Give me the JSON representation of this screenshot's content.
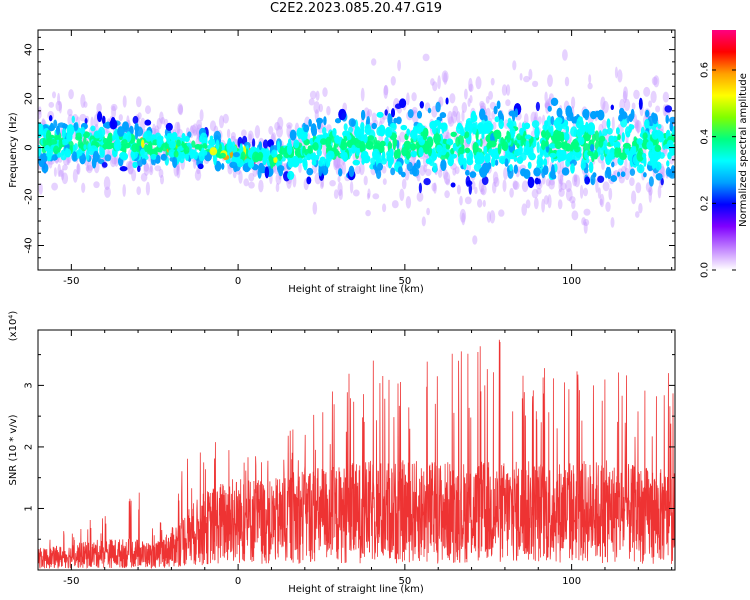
{
  "chart_data": [
    {
      "type": "heatmap",
      "title": "C2E2.2023.085.20.47.G19",
      "xlabel": "Height of straight line (km)",
      "ylabel": "Frequency (Hz)",
      "xlim": [
        -60,
        131
      ],
      "ylim": [
        -50,
        48
      ],
      "x_ticks": [
        -50,
        0,
        50,
        100
      ],
      "y_ticks": [
        -40,
        -20,
        0,
        20,
        40
      ],
      "colorbar": {
        "label": "Normalized spectral amplitude",
        "range": [
          0,
          0.72
        ],
        "ticks": [
          0.0,
          0.2,
          0.4,
          0.6
        ],
        "colors": [
          "#ffffff",
          "#c080ff",
          "#8000ff",
          "#0000ff",
          "#00a0ff",
          "#00ffff",
          "#00ff80",
          "#80ff00",
          "#ffff00",
          "#ffa000",
          "#ff0000",
          "#ff0080"
        ]
      },
      "ridge": {
        "x": [
          -60,
          -40,
          -20,
          -10,
          0,
          10,
          20,
          40,
          60,
          80,
          100,
          120,
          131
        ],
        "center_hz": [
          2,
          2,
          0,
          0,
          -3,
          -5,
          0,
          1,
          2,
          2,
          2,
          1,
          0
        ],
        "spread_hz": [
          10,
          10,
          8,
          7,
          6,
          6,
          12,
          14,
          16,
          16,
          16,
          16,
          14
        ]
      },
      "grid": false
    },
    {
      "type": "line",
      "xlabel": "Height of straight line (km)",
      "ylabel": "SNR (10 * v/v)",
      "y_multiplier": "(x10⁴)",
      "xlim": [
        -60,
        131
      ],
      "ylim": [
        0,
        3.9
      ],
      "x_ticks": [
        -50,
        0,
        50,
        100
      ],
      "y_ticks": [
        1,
        2,
        3
      ],
      "line_color": "#ee3333",
      "envelope": {
        "x": [
          -60,
          -40,
          -30,
          -25,
          -20,
          -15,
          -10,
          -5,
          0,
          5,
          10,
          15,
          20,
          30,
          40,
          50,
          60,
          70,
          80,
          90,
          100,
          110,
          120,
          131
        ],
        "baseline": [
          0.2,
          0.3,
          0.3,
          0.25,
          0.4,
          0.6,
          0.75,
          0.85,
          0.9,
          0.9,
          0.85,
          0.95,
          1.0,
          1.0,
          1.05,
          1.05,
          1.05,
          1.05,
          1.05,
          1.05,
          1.05,
          1.05,
          1.0,
          0.95
        ],
        "peak": [
          0.5,
          0.9,
          1.3,
          0.7,
          1.2,
          2.0,
          2.0,
          2.4,
          1.8,
          1.9,
          2.1,
          2.5,
          2.6,
          3.1,
          3.6,
          3.5,
          3.6,
          3.6,
          3.9,
          3.5,
          3.5,
          3.3,
          3.2,
          3.2
        ]
      },
      "grid": false
    }
  ]
}
